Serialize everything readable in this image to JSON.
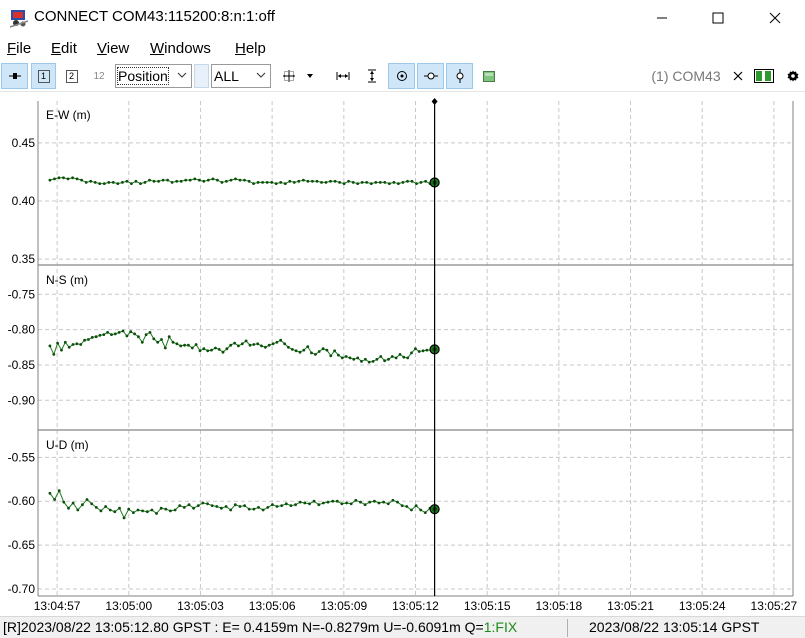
{
  "window": {
    "title": "CONNECT COM43:115200:8:n:1:off",
    "minimize": "minimize",
    "maximize": "maximize",
    "close": "close"
  },
  "menu": [
    {
      "label": "File",
      "key": "F",
      "rest": "ile"
    },
    {
      "label": "Edit",
      "key": "E",
      "rest": "dit"
    },
    {
      "label": "View",
      "key": "V",
      "rest": "iew"
    },
    {
      "label": "Windows",
      "key": "W",
      "rest": "indows"
    },
    {
      "label": "Help",
      "key": "H",
      "rest": "elp"
    }
  ],
  "toolbar": {
    "plot1": "1",
    "plot2": "2",
    "plot12": "12",
    "plot_type": "Position",
    "satellite_filter": "ALL",
    "stream_label": "(1) COM43",
    "colors": {
      "active_bg": "#cfe6f8",
      "active_border": "#9cc8ec"
    }
  },
  "chart_data": {
    "type": "line",
    "x_tick_labels": [
      "13:04:57",
      "13:05:00",
      "13:05:03",
      "13:05:06",
      "13:05:09",
      "13:05:12",
      "13:05:15",
      "13:05:18",
      "13:05:21",
      "13:05:24",
      "13:05:27"
    ],
    "x_ticks_sec": [
      0,
      3,
      6,
      9,
      12,
      15,
      18,
      21,
      24,
      27,
      30
    ],
    "xlim_sec": [
      -0.8,
      30.8
    ],
    "cursor_sec": 15.8,
    "marker_color": "#1f7a1f",
    "grid": true,
    "panels": [
      {
        "ylabel": "E-W (m)",
        "ylim": [
          0.345,
          0.486
        ],
        "ticks": [
          0.45,
          0.4,
          0.35
        ],
        "tick_labels": [
          "0.45",
          "0.40",
          "0.35"
        ],
        "cursor_value": 0.4159,
        "values": [
          0.418,
          0.419,
          0.42,
          0.42,
          0.419,
          0.42,
          0.419,
          0.418,
          0.416,
          0.417,
          0.416,
          0.415,
          0.415,
          0.416,
          0.416,
          0.415,
          0.416,
          0.417,
          0.415,
          0.417,
          0.415,
          0.416,
          0.418,
          0.417,
          0.417,
          0.418,
          0.418,
          0.416,
          0.417,
          0.417,
          0.418,
          0.418,
          0.419,
          0.418,
          0.417,
          0.418,
          0.419,
          0.418,
          0.416,
          0.417,
          0.418,
          0.419,
          0.418,
          0.418,
          0.417,
          0.415,
          0.416,
          0.416,
          0.416,
          0.416,
          0.415,
          0.416,
          0.415,
          0.417,
          0.416,
          0.417,
          0.418,
          0.417,
          0.417,
          0.417,
          0.416,
          0.416,
          0.417,
          0.417,
          0.416,
          0.415,
          0.417,
          0.416,
          0.415,
          0.416,
          0.416,
          0.415,
          0.416,
          0.416,
          0.416,
          0.415,
          0.416,
          0.415,
          0.416,
          0.417,
          0.417,
          0.415,
          0.416,
          0.417,
          0.415,
          0.4159
        ]
      },
      {
        "ylabel": "N-S (m)",
        "ylim": [
          -0.942,
          -0.71
        ],
        "ticks": [
          -0.75,
          -0.8,
          -0.85,
          -0.9
        ],
        "tick_labels": [
          "-0.75",
          "-0.80",
          "-0.85",
          "-0.90"
        ],
        "cursor_value": -0.8279,
        "values": [
          -0.823,
          -0.835,
          -0.819,
          -0.829,
          -0.818,
          -0.825,
          -0.821,
          -0.82,
          -0.821,
          -0.815,
          -0.814,
          -0.811,
          -0.81,
          -0.808,
          -0.807,
          -0.804,
          -0.807,
          -0.806,
          -0.804,
          -0.802,
          -0.809,
          -0.803,
          -0.806,
          -0.81,
          -0.818,
          -0.807,
          -0.804,
          -0.813,
          -0.818,
          -0.814,
          -0.826,
          -0.81,
          -0.818,
          -0.82,
          -0.823,
          -0.822,
          -0.822,
          -0.826,
          -0.821,
          -0.83,
          -0.827,
          -0.83,
          -0.829,
          -0.826,
          -0.828,
          -0.832,
          -0.827,
          -0.822,
          -0.819,
          -0.823,
          -0.82,
          -0.816,
          -0.822,
          -0.821,
          -0.82,
          -0.823,
          -0.825,
          -0.822,
          -0.82,
          -0.818,
          -0.815,
          -0.82,
          -0.825,
          -0.828,
          -0.83,
          -0.832,
          -0.829,
          -0.824,
          -0.833,
          -0.835,
          -0.831,
          -0.827,
          -0.829,
          -0.837,
          -0.83,
          -0.836,
          -0.84,
          -0.838,
          -0.84,
          -0.842,
          -0.84,
          -0.845,
          -0.842,
          -0.846,
          -0.845,
          -0.842,
          -0.838,
          -0.844,
          -0.842,
          -0.838,
          -0.84,
          -0.835,
          -0.839,
          -0.84,
          -0.833,
          -0.827,
          -0.831,
          -0.83,
          -0.829,
          -0.829,
          -0.8279
        ]
      },
      {
        "ylabel": "U-D (m)",
        "ylim": [
          -0.708,
          -0.52
        ],
        "ticks": [
          -0.55,
          -0.6,
          -0.65,
          -0.7
        ],
        "tick_labels": [
          "-0.55",
          "-0.60",
          "-0.65",
          "-0.70"
        ],
        "cursor_value": -0.6091,
        "values": [
          -0.591,
          -0.598,
          -0.588,
          -0.601,
          -0.608,
          -0.602,
          -0.61,
          -0.604,
          -0.598,
          -0.603,
          -0.607,
          -0.611,
          -0.606,
          -0.61,
          -0.612,
          -0.608,
          -0.619,
          -0.609,
          -0.613,
          -0.61,
          -0.611,
          -0.612,
          -0.61,
          -0.614,
          -0.608,
          -0.609,
          -0.611,
          -0.61,
          -0.605,
          -0.607,
          -0.604,
          -0.608,
          -0.605,
          -0.602,
          -0.603,
          -0.605,
          -0.606,
          -0.608,
          -0.606,
          -0.61,
          -0.604,
          -0.606,
          -0.605,
          -0.609,
          -0.609,
          -0.607,
          -0.61,
          -0.607,
          -0.604,
          -0.606,
          -0.605,
          -0.603,
          -0.605,
          -0.604,
          -0.601,
          -0.602,
          -0.603,
          -0.6,
          -0.604,
          -0.602,
          -0.601,
          -0.6,
          -0.6,
          -0.603,
          -0.602,
          -0.603,
          -0.599,
          -0.601,
          -0.604,
          -0.601,
          -0.6,
          -0.602,
          -0.601,
          -0.603,
          -0.599,
          -0.601,
          -0.605,
          -0.606,
          -0.61,
          -0.605,
          -0.61,
          -0.613,
          -0.608,
          -0.6091
        ]
      }
    ]
  },
  "status": {
    "left_prefix": "[R]2023/08/22 13:05:12.80 GPST : E= 0.4159m N=-0.8279m U=-0.6091m Q=",
    "fix_text": "1:FIX",
    "right": "2023/08/22 13:05:14 GPST"
  }
}
